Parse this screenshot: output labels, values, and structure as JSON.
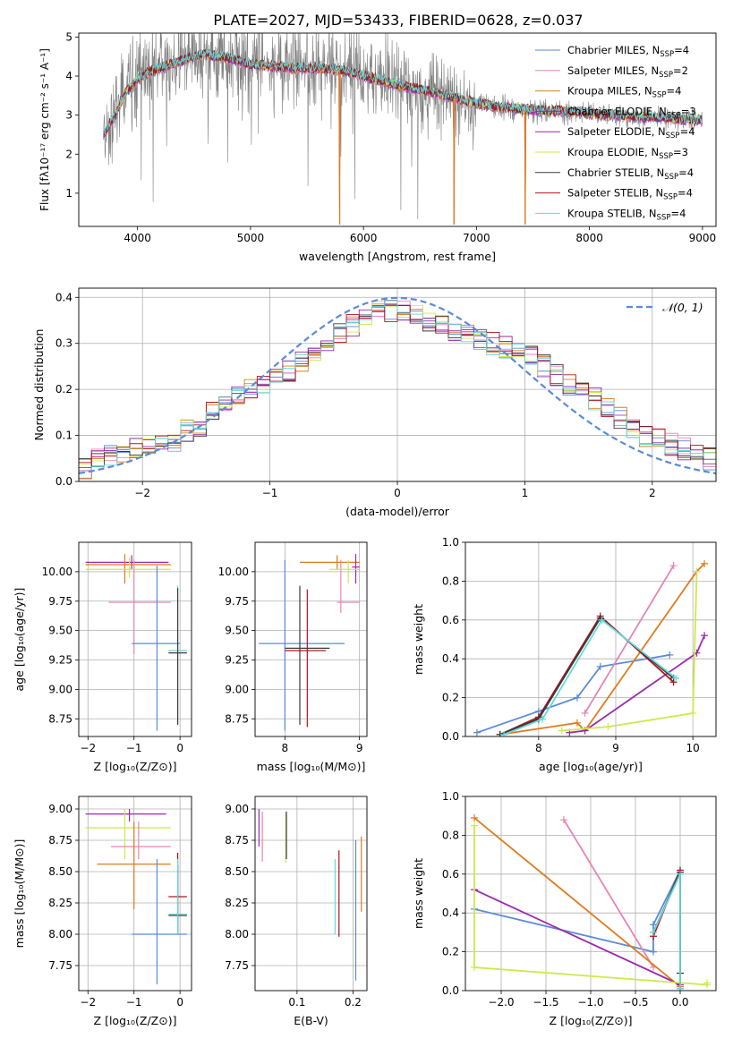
{
  "figure": {
    "title": "PLATE=2027, MJD=53433, FIBERID=0628, z=0.037"
  },
  "colors": {
    "chabrier_miles": "#5b8bd6",
    "salpeter_miles": "#e685b5",
    "kroupa_miles": "#e07b1c",
    "chabrier_elodie": "#9a2aae",
    "salpeter_elodie": "#8e2aa8",
    "kroupa_elodie": "#cfe84a",
    "chabrier_stelib": "#3a3a3a",
    "salpeter_stelib": "#b0141e",
    "kroupa_stelib": "#66d9d9",
    "data": "#808080",
    "normal": "#5b8bd6"
  },
  "chart_data": [
    {
      "id": "spectrum",
      "type": "line",
      "xlabel": "wavelength [Angstrom, rest frame]",
      "ylabel": "Flux [fλ10⁻¹⁷ erg cm⁻² s⁻¹ A⁻¹]",
      "xlim": [
        3480,
        9120
      ],
      "ylim": [
        0.15,
        5.1
      ],
      "xticks": [
        4000,
        5000,
        6000,
        7000,
        8000,
        9000
      ],
      "yticks": [
        1,
        2,
        3,
        4,
        5
      ],
      "legend_position": "top-right",
      "legend": [
        {
          "label": "Chabrier MILES, N",
          "sub": "SSP",
          "suffix": "=4",
          "color": "chabrier_miles"
        },
        {
          "label": "Salpeter MILES, N",
          "sub": "SSP",
          "suffix": "=2",
          "color": "salpeter_miles"
        },
        {
          "label": "Kroupa MILES, N",
          "sub": "SSP",
          "suffix": "=4",
          "color": "kroupa_miles"
        },
        {
          "label": "Chabrier ELODIE, N",
          "sub": "SSP",
          "suffix": "=3",
          "color": "chabrier_elodie"
        },
        {
          "label": "Salpeter ELODIE, N",
          "sub": "SSP",
          "suffix": "=4",
          "color": "salpeter_elodie"
        },
        {
          "label": "Kroupa ELODIE, N",
          "sub": "SSP",
          "suffix": "=3",
          "color": "kroupa_elodie"
        },
        {
          "label": "Chabrier STELIB, N",
          "sub": "SSP",
          "suffix": "=4",
          "color": "chabrier_stelib"
        },
        {
          "label": "Salpeter STELIB, N",
          "sub": "SSP",
          "suffix": "=4",
          "color": "salpeter_stelib"
        },
        {
          "label": "Kroupa STELIB, N",
          "sub": "SSP",
          "suffix": "=4",
          "color": "kroupa_stelib"
        }
      ],
      "continuum": {
        "wavelength": [
          3700,
          3800,
          3900,
          4000,
          4100,
          4200,
          4300,
          4400,
          4500,
          4600,
          4700,
          4800,
          4900,
          5000,
          5200,
          5400,
          5600,
          5800,
          6000,
          6200,
          6400,
          6600,
          6800,
          7000,
          7200,
          7400,
          7600,
          7800,
          8000,
          8200,
          8400,
          8600,
          8800,
          9000
        ],
        "flux": [
          2.5,
          3.0,
          3.6,
          3.9,
          4.1,
          4.2,
          4.3,
          4.4,
          4.5,
          4.55,
          4.5,
          4.45,
          4.4,
          4.3,
          4.25,
          4.2,
          4.2,
          4.15,
          4.0,
          3.85,
          3.7,
          3.6,
          3.45,
          3.3,
          3.2,
          3.15,
          3.1,
          3.1,
          3.05,
          3.0,
          2.95,
          2.95,
          2.9,
          2.85
        ]
      },
      "model_dips": [
        {
          "wavelength": 5790,
          "flux_min": 0.2
        },
        {
          "wavelength": 6800,
          "flux_min": 0.2
        },
        {
          "wavelength": 7430,
          "flux_min": 0.2
        }
      ]
    },
    {
      "id": "residuals",
      "type": "step",
      "xlabel": "(data-model)/error",
      "ylabel": "Normed distribution",
      "xlim": [
        -2.5,
        2.5
      ],
      "ylim": [
        0,
        0.42
      ],
      "xticks": [
        -2,
        -1,
        0,
        1,
        2
      ],
      "yticks": [
        0.0,
        0.1,
        0.2,
        0.3,
        0.4
      ],
      "grid": true,
      "legend_position": "top-right",
      "legend": [
        {
          "label": "𝒩(0, 1)",
          "color": "normal",
          "style": "dashed"
        }
      ],
      "bin_width": 0.1,
      "bin_centers": [
        -2.45,
        -2.35,
        -2.25,
        -2.15,
        -2.05,
        -1.95,
        -1.85,
        -1.75,
        -1.65,
        -1.55,
        -1.45,
        -1.35,
        -1.25,
        -1.15,
        -1.05,
        -0.95,
        -0.85,
        -0.75,
        -0.65,
        -0.55,
        -0.45,
        -0.35,
        -0.25,
        -0.15,
        -0.05,
        0.05,
        0.15,
        0.25,
        0.35,
        0.45,
        0.55,
        0.65,
        0.75,
        0.85,
        0.95,
        1.05,
        1.15,
        1.25,
        1.35,
        1.45,
        1.55,
        1.65,
        1.75,
        1.85,
        1.95,
        2.05,
        2.15,
        2.25,
        2.35,
        2.45
      ],
      "heights": [
        0.03,
        0.05,
        0.06,
        0.06,
        0.07,
        0.07,
        0.08,
        0.09,
        0.11,
        0.12,
        0.15,
        0.17,
        0.19,
        0.2,
        0.21,
        0.22,
        0.24,
        0.26,
        0.28,
        0.3,
        0.32,
        0.34,
        0.36,
        0.37,
        0.37,
        0.37,
        0.36,
        0.35,
        0.34,
        0.33,
        0.32,
        0.31,
        0.3,
        0.29,
        0.28,
        0.27,
        0.25,
        0.23,
        0.21,
        0.19,
        0.18,
        0.16,
        0.14,
        0.12,
        0.1,
        0.09,
        0.08,
        0.07,
        0.06,
        0.05
      ]
    },
    {
      "id": "age_vs_Z",
      "type": "errorbar",
      "xlabel": "Z [log₁₀(Z/Z⊙)]",
      "ylabel": "age  [log₁₀(age/yr)]",
      "xlim": [
        -2.2,
        0.25
      ],
      "ylim": [
        8.6,
        10.25
      ],
      "xticks": [
        -2,
        -1,
        0
      ],
      "yticks": [
        8.75,
        9.0,
        9.25,
        9.5,
        9.75,
        10.0
      ],
      "grid": true,
      "points": [
        {
          "x": -1.05,
          "y": 10.08,
          "xlo": -2.05,
          "xhi": -0.25,
          "ylo": 10.02,
          "yhi": 10.14,
          "color": "chabrier_elodie"
        },
        {
          "x": -1.2,
          "y": 10.06,
          "xlo": -2.05,
          "xhi": -0.2,
          "ylo": 9.9,
          "yhi": 10.15,
          "color": "kroupa_miles"
        },
        {
          "x": -1.0,
          "y": 9.74,
          "xlo": -1.55,
          "xhi": -0.2,
          "ylo": 9.3,
          "yhi": 10.1,
          "color": "salpeter_miles"
        },
        {
          "x": -1.1,
          "y": 10.02,
          "xlo": -2.05,
          "xhi": -0.2,
          "ylo": 9.95,
          "yhi": 10.12,
          "color": "kroupa_elodie"
        },
        {
          "x": -0.5,
          "y": 9.39,
          "xlo": -1.05,
          "xhi": 0.0,
          "ylo": 8.65,
          "yhi": 10.05,
          "color": "chabrier_miles"
        },
        {
          "x": -0.05,
          "y": 9.33,
          "xlo": -0.25,
          "xhi": 0.15,
          "ylo": 8.7,
          "yhi": 9.88,
          "color": "kroupa_stelib"
        },
        {
          "x": -0.05,
          "y": 9.31,
          "xlo": -0.25,
          "xhi": 0.15,
          "ylo": 8.7,
          "yhi": 9.86,
          "color": "chabrier_stelib"
        }
      ]
    },
    {
      "id": "age_vs_mass",
      "type": "errorbar",
      "xlabel": "mass [log₁₀(M/M⊙)]",
      "ylabel": "",
      "xlim": [
        7.6,
        9.1
      ],
      "ylim": [
        8.6,
        10.25
      ],
      "xticks": [
        8,
        9
      ],
      "yticks": [
        8.75,
        9.0,
        9.25,
        9.5,
        9.75,
        10.0
      ],
      "grid": true,
      "points": [
        {
          "x": 8.7,
          "y": 10.08,
          "xlo": 8.2,
          "xhi": 9.0,
          "ylo": 10.02,
          "yhi": 10.14,
          "color": "kroupa_miles"
        },
        {
          "x": 8.95,
          "y": 10.04,
          "xlo": 8.9,
          "xhi": 9.0,
          "ylo": 9.9,
          "yhi": 10.15,
          "color": "chabrier_elodie"
        },
        {
          "x": 8.75,
          "y": 9.74,
          "xlo": 8.7,
          "xhi": 9.0,
          "ylo": 9.65,
          "yhi": 10.1,
          "color": "salpeter_miles"
        },
        {
          "x": 8.85,
          "y": 10.02,
          "xlo": 8.6,
          "xhi": 9.0,
          "ylo": 9.9,
          "yhi": 10.1,
          "color": "kroupa_elodie"
        },
        {
          "x": 8.0,
          "y": 9.39,
          "xlo": 7.65,
          "xhi": 8.8,
          "ylo": 8.65,
          "yhi": 10.1,
          "color": "chabrier_miles"
        },
        {
          "x": 8.3,
          "y": 9.33,
          "xlo": 8.0,
          "xhi": 8.55,
          "ylo": 8.68,
          "yhi": 9.85,
          "color": "salpeter_stelib"
        },
        {
          "x": 8.2,
          "y": 9.35,
          "xlo": 8.0,
          "xhi": 8.6,
          "ylo": 8.7,
          "yhi": 9.88,
          "color": "chabrier_stelib"
        }
      ]
    },
    {
      "id": "weight_vs_age",
      "type": "line",
      "xlabel": "age  [log₁₀(age/yr)]",
      "ylabel": "mass weight",
      "xlim": [
        7.05,
        10.3
      ],
      "ylim": [
        0.0,
        1.0
      ],
      "xticks": [
        8,
        9,
        10
      ],
      "yticks": [
        0.0,
        0.2,
        0.4,
        0.6,
        0.8,
        1.0
      ],
      "grid": true,
      "series": [
        {
          "color": "chabrier_miles",
          "x": [
            7.2,
            8.0,
            8.5,
            8.8,
            9.7
          ],
          "y": [
            0.02,
            0.13,
            0.2,
            0.36,
            0.42
          ]
        },
        {
          "color": "salpeter_miles",
          "x": [
            8.6,
            9.75
          ],
          "y": [
            0.12,
            0.88
          ]
        },
        {
          "color": "kroupa_miles",
          "x": [
            7.5,
            8.5,
            8.6,
            10.05,
            10.15
          ],
          "y": [
            0.01,
            0.07,
            0.03,
            0.85,
            0.89
          ]
        },
        {
          "color": "chabrier_elodie",
          "x": [
            8.4,
            8.6,
            10.05,
            10.15
          ],
          "y": [
            0.02,
            0.03,
            0.43,
            0.52
          ]
        },
        {
          "color": "kroupa_elodie",
          "x": [
            8.3,
            8.9,
            10.0,
            10.05
          ],
          "y": [
            0.03,
            0.05,
            0.12,
            0.85
          ]
        },
        {
          "color": "salpeter_stelib",
          "x": [
            7.5,
            8.0,
            8.8,
            9.75
          ],
          "y": [
            0.01,
            0.1,
            0.62,
            0.28
          ]
        },
        {
          "color": "chabrier_stelib",
          "x": [
            7.5,
            8.0,
            8.8,
            9.75
          ],
          "y": [
            0.01,
            0.09,
            0.61,
            0.3
          ]
        },
        {
          "color": "kroupa_stelib",
          "x": [
            7.55,
            8.05,
            8.82,
            9.78
          ],
          "y": [
            0.01,
            0.09,
            0.6,
            0.3
          ]
        }
      ]
    },
    {
      "id": "mass_vs_Z",
      "type": "errorbar",
      "xlabel": "Z [log₁₀(Z/Z⊙)]",
      "ylabel": "mass [log₁₀(M/M⊙)]",
      "xlim": [
        -2.2,
        0.25
      ],
      "ylim": [
        7.55,
        9.1
      ],
      "xticks": [
        -2,
        -1,
        0
      ],
      "yticks": [
        7.75,
        8.0,
        8.25,
        8.5,
        8.75,
        9.0
      ],
      "grid": true,
      "points": [
        {
          "x": -1.1,
          "y": 8.96,
          "xlo": -2.05,
          "xhi": -0.3,
          "ylo": 8.9,
          "yhi": 9.0,
          "color": "chabrier_elodie"
        },
        {
          "x": -1.2,
          "y": 8.85,
          "xlo": -2.05,
          "xhi": -0.2,
          "ylo": 8.6,
          "yhi": 9.0,
          "color": "kroupa_elodie"
        },
        {
          "x": -0.9,
          "y": 8.7,
          "xlo": -1.5,
          "xhi": -0.2,
          "ylo": 8.6,
          "yhi": 8.9,
          "color": "salpeter_miles"
        },
        {
          "x": -1.0,
          "y": 8.56,
          "xlo": -1.8,
          "xhi": -0.2,
          "ylo": 8.2,
          "yhi": 8.9,
          "color": "kroupa_miles"
        },
        {
          "x": -0.5,
          "y": 8.0,
          "xlo": -1.05,
          "xhi": 0.15,
          "ylo": 7.6,
          "yhi": 8.6,
          "color": "chabrier_miles"
        },
        {
          "x": -0.05,
          "y": 8.3,
          "xlo": -0.25,
          "xhi": 0.15,
          "ylo": 8.0,
          "yhi": 8.65,
          "color": "salpeter_stelib"
        },
        {
          "x": -0.05,
          "y": 8.15,
          "xlo": -0.25,
          "xhi": 0.15,
          "ylo": 8.0,
          "yhi": 8.55,
          "color": "chabrier_stelib"
        },
        {
          "x": -0.05,
          "y": 8.16,
          "xlo": -0.25,
          "xhi": 0.15,
          "ylo": 8.0,
          "yhi": 8.6,
          "color": "kroupa_stelib"
        }
      ]
    },
    {
      "id": "mass_vs_ebv",
      "type": "errorbar",
      "xlabel": "E(B-V)",
      "ylabel": "",
      "xlim": [
        0.025,
        0.225
      ],
      "ylim": [
        7.55,
        9.1
      ],
      "xticks": [
        0.1,
        0.2
      ],
      "yticks": [
        7.75,
        8.0,
        8.25,
        8.5,
        8.75,
        9.0
      ],
      "grid": true,
      "points": [
        {
          "x": 0.032,
          "y": 8.85,
          "ylo": 8.7,
          "yhi": 9.0,
          "color": "chabrier_elodie"
        },
        {
          "x": 0.038,
          "y": 8.8,
          "ylo": 8.58,
          "yhi": 8.98,
          "color": "salpeter_miles"
        },
        {
          "x": 0.08,
          "y": 8.8,
          "ylo": 8.57,
          "yhi": 8.97,
          "color": "kroupa_elodie"
        },
        {
          "x": 0.081,
          "y": 8.8,
          "ylo": 8.6,
          "yhi": 8.98,
          "color": "chabrier_stelib"
        },
        {
          "x": 0.168,
          "y": 8.3,
          "ylo": 8.0,
          "yhi": 8.6,
          "color": "kroupa_stelib"
        },
        {
          "x": 0.175,
          "y": 8.3,
          "ylo": 7.98,
          "yhi": 8.67,
          "color": "salpeter_stelib"
        },
        {
          "x": 0.205,
          "y": 8.0,
          "ylo": 7.63,
          "yhi": 8.75,
          "color": "chabrier_miles"
        },
        {
          "x": 0.215,
          "y": 8.5,
          "ylo": 8.18,
          "yhi": 8.78,
          "color": "kroupa_miles"
        }
      ]
    },
    {
      "id": "weight_vs_Z",
      "type": "line",
      "xlabel": "Z [log₁₀(Z/Z⊙)]",
      "ylabel": "mass weight",
      "xlim": [
        -2.4,
        0.4
      ],
      "ylim": [
        0.0,
        1.0
      ],
      "xticks": [
        -2.0,
        -1.5,
        -1.0,
        -0.5,
        0.0
      ],
      "yticks": [
        0.0,
        0.2,
        0.4,
        0.6,
        0.8,
        1.0
      ],
      "grid": true,
      "series": [
        {
          "color": "chabrier_miles",
          "x": [
            -2.3,
            -0.3,
            -0.3,
            0.0
          ],
          "y": [
            0.42,
            0.2,
            0.34,
            0.62
          ]
        },
        {
          "color": "salpeter_miles",
          "x": [
            -1.3,
            -0.3
          ],
          "y": [
            0.88,
            0.12
          ]
        },
        {
          "color": "kroupa_miles",
          "x": [
            -2.3,
            0.0
          ],
          "y": [
            0.89,
            0.02
          ]
        },
        {
          "color": "chabrier_elodie",
          "x": [
            -2.3,
            0.0
          ],
          "y": [
            0.52,
            0.03
          ]
        },
        {
          "color": "kroupa_elodie",
          "x": [
            -2.3,
            -2.3,
            0.3,
            0.3
          ],
          "y": [
            0.85,
            0.12,
            0.03,
            0.04
          ]
        },
        {
          "color": "salpeter_stelib",
          "x": [
            -0.3,
            0.0,
            0.0
          ],
          "y": [
            0.28,
            0.62,
            0.01
          ]
        },
        {
          "color": "chabrier_stelib",
          "x": [
            -0.3,
            0.0,
            0.0
          ],
          "y": [
            0.3,
            0.61,
            0.09
          ]
        },
        {
          "color": "kroupa_stelib",
          "x": [
            -0.3,
            0.0,
            0.0
          ],
          "y": [
            0.3,
            0.6,
            0.01
          ]
        }
      ]
    }
  ]
}
